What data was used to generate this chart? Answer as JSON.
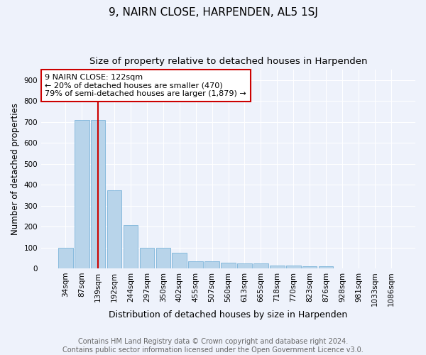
{
  "title": "9, NAIRN CLOSE, HARPENDEN, AL5 1SJ",
  "subtitle": "Size of property relative to detached houses in Harpenden",
  "xlabel": "Distribution of detached houses by size in Harpenden",
  "ylabel": "Number of detached properties",
  "categories": [
    "34sqm",
    "87sqm",
    "139sqm",
    "192sqm",
    "244sqm",
    "297sqm",
    "350sqm",
    "402sqm",
    "455sqm",
    "507sqm",
    "560sqm",
    "613sqm",
    "665sqm",
    "718sqm",
    "770sqm",
    "823sqm",
    "876sqm",
    "928sqm",
    "981sqm",
    "1033sqm",
    "1086sqm"
  ],
  "values": [
    100,
    710,
    710,
    375,
    207,
    97,
    97,
    73,
    35,
    35,
    27,
    22,
    22,
    12,
    12,
    10,
    10,
    0,
    0,
    0,
    0
  ],
  "bar_color": "#b8d4ea",
  "bar_edge_color": "#6aaad4",
  "vline_x_index": 2,
  "vline_color": "#cc0000",
  "annotation_text": "9 NAIRN CLOSE: 122sqm\n← 20% of detached houses are smaller (470)\n79% of semi-detached houses are larger (1,879) →",
  "annotation_box_color": "#ffffff",
  "annotation_box_edge_color": "#cc0000",
  "background_color": "#eef2fb",
  "grid_color": "#ffffff",
  "ylim": [
    0,
    950
  ],
  "yticks": [
    0,
    100,
    200,
    300,
    400,
    500,
    600,
    700,
    800,
    900
  ],
  "footer_text": "Contains HM Land Registry data © Crown copyright and database right 2024.\nContains public sector information licensed under the Open Government Licence v3.0.",
  "title_fontsize": 11,
  "subtitle_fontsize": 9.5,
  "xlabel_fontsize": 9,
  "ylabel_fontsize": 8.5,
  "footer_fontsize": 7,
  "tick_fontsize": 7.5,
  "annot_fontsize": 8
}
